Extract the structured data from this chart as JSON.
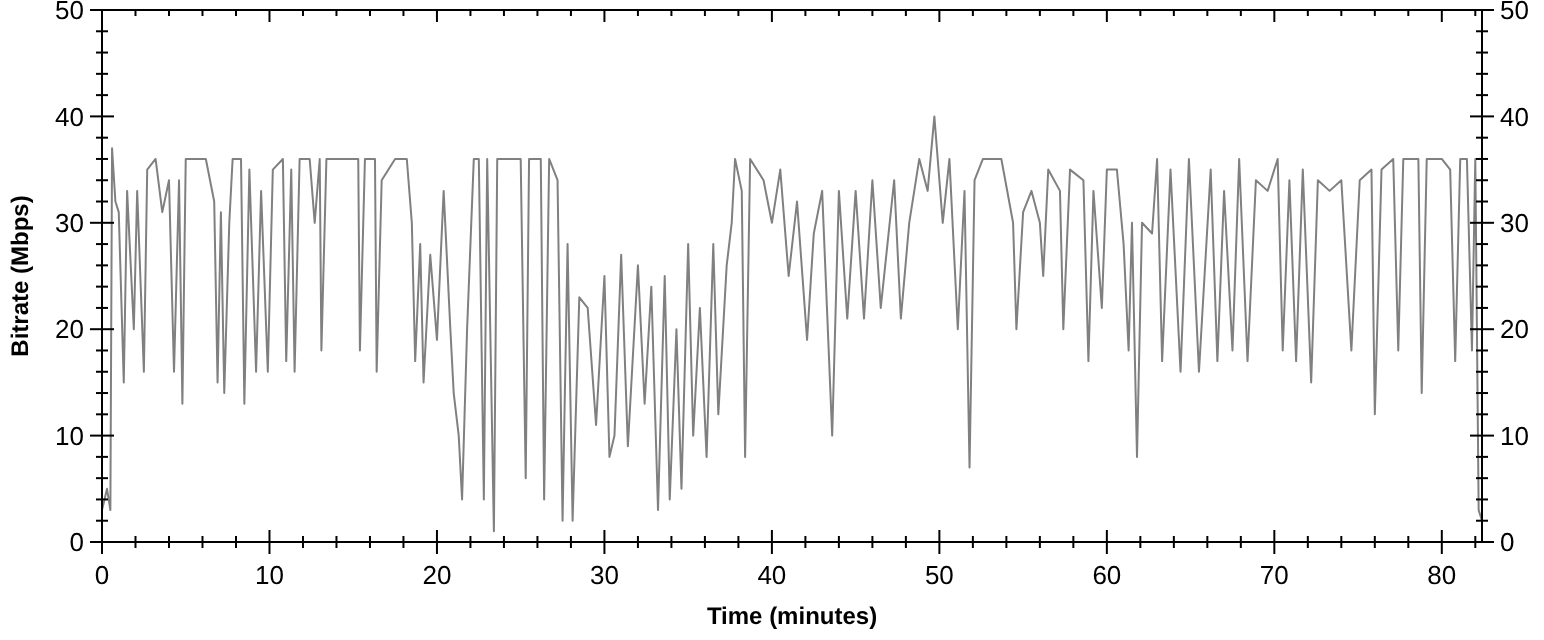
{
  "chart_data": {
    "type": "line",
    "xlabel": "Time (minutes)",
    "ylabel": "Bitrate (Mbps)",
    "xlim": [
      0,
      82.4
    ],
    "xticks": [
      0,
      {
        "value": 2,
        "label": null
      },
      {
        "value": 4,
        "label": null
      },
      {
        "value": 6,
        "label": null
      },
      {
        "value": 8,
        "label": null
      },
      10,
      {
        "value": 12,
        "label": null
      },
      {
        "value": 14,
        "label": null
      },
      {
        "value": 16,
        "label": null
      },
      {
        "value": 18,
        "label": null
      },
      20,
      {
        "value": 22,
        "label": null
      },
      {
        "value": 24,
        "label": null
      },
      {
        "value": 26,
        "label": null
      },
      {
        "value": 28,
        "label": null
      },
      30,
      {
        "value": 32,
        "label": null
      },
      {
        "value": 34,
        "label": null
      },
      {
        "value": 36,
        "label": null
      },
      {
        "value": 38,
        "label": null
      },
      40,
      {
        "value": 42,
        "label": null
      },
      {
        "value": 44,
        "label": null
      },
      {
        "value": 46,
        "label": null
      },
      {
        "value": 48,
        "label": null
      },
      50,
      {
        "value": 52,
        "label": null
      },
      {
        "value": 54,
        "label": null
      },
      {
        "value": 56,
        "label": null
      },
      {
        "value": 58,
        "label": null
      },
      60,
      {
        "value": 62,
        "label": null
      },
      {
        "value": 64,
        "label": null
      },
      {
        "value": 66,
        "label": null
      },
      {
        "value": 68,
        "label": null
      },
      70,
      {
        "value": 72,
        "label": null
      },
      {
        "value": 74,
        "label": null
      },
      {
        "value": 76,
        "label": null
      },
      {
        "value": 78,
        "label": null
      },
      80,
      {
        "value": 82,
        "label": null
      }
    ],
    "ylim": [
      0,
      50
    ],
    "yticks": [
      0,
      {
        "value": 2,
        "label": null
      },
      {
        "value": 4,
        "label": null
      },
      {
        "value": 6,
        "label": null
      },
      {
        "value": 8,
        "label": null
      },
      10,
      {
        "value": 12,
        "label": null
      },
      {
        "value": 14,
        "label": null
      },
      {
        "value": 16,
        "label": null
      },
      {
        "value": 18,
        "label": null
      },
      20,
      {
        "value": 22,
        "label": null
      },
      {
        "value": 24,
        "label": null
      },
      {
        "value": 26,
        "label": null
      },
      {
        "value": 28,
        "label": null
      },
      30,
      {
        "value": 32,
        "label": null
      },
      {
        "value": 34,
        "label": null
      },
      {
        "value": 36,
        "label": null
      },
      {
        "value": 38,
        "label": null
      },
      40,
      {
        "value": 42,
        "label": null
      },
      {
        "value": 44,
        "label": null
      },
      {
        "value": 46,
        "label": null
      },
      {
        "value": 48,
        "label": null
      },
      50
    ],
    "y2lim": [
      0,
      50
    ],
    "y2ticks": [
      0,
      {
        "value": 2,
        "label": null
      },
      {
        "value": 4,
        "label": null
      },
      {
        "value": 6,
        "label": null
      },
      {
        "value": 8,
        "label": null
      },
      10,
      {
        "value": 12,
        "label": null
      },
      {
        "value": 14,
        "label": null
      },
      {
        "value": 16,
        "label": null
      },
      {
        "value": 18,
        "label": null
      },
      20,
      {
        "value": 22,
        "label": null
      },
      {
        "value": 24,
        "label": null
      },
      {
        "value": 26,
        "label": null
      },
      {
        "value": 28,
        "label": null
      },
      30,
      {
        "value": 32,
        "label": null
      },
      {
        "value": 34,
        "label": null
      },
      {
        "value": 36,
        "label": null
      },
      {
        "value": 38,
        "label": null
      },
      40,
      {
        "value": 42,
        "label": null
      },
      {
        "value": 44,
        "label": null
      },
      {
        "value": 46,
        "label": null
      },
      {
        "value": 48,
        "label": null
      },
      50
    ],
    "grid": false,
    "series": [
      {
        "color": "#808080",
        "x": [
          0,
          0.3,
          0.5,
          0.6,
          0.8,
          1.0,
          1.3,
          1.5,
          1.9,
          2.1,
          2.5,
          2.7,
          3.2,
          3.6,
          4.0,
          4.3,
          4.6,
          4.8,
          5.0,
          6.2,
          6.7,
          6.9,
          7.1,
          7.3,
          7.6,
          7.8,
          8.3,
          8.5,
          8.8,
          9.2,
          9.5,
          9.9,
          10.2,
          10.8,
          11.0,
          11.3,
          11.5,
          11.8,
          12.4,
          12.7,
          13.0,
          13.1,
          13.4,
          14.0,
          15.3,
          15.4,
          15.7,
          16.3,
          16.4,
          16.7,
          17.5,
          18.2,
          18.5,
          18.7,
          19.0,
          19.2,
          19.6,
          20.0,
          20.4,
          20.8,
          21.0,
          21.3,
          21.5,
          21.8,
          22.2,
          22.5,
          22.8,
          23.0,
          23.4,
          23.6,
          25.0,
          25.3,
          25.5,
          26.2,
          26.4,
          26.7,
          27.2,
          27.5,
          27.8,
          28.1,
          28.5,
          29.0,
          29.5,
          30.0,
          30.3,
          30.6,
          31.0,
          31.4,
          32.0,
          32.4,
          32.8,
          33.2,
          33.6,
          33.9,
          34.3,
          34.6,
          35.0,
          35.3,
          35.7,
          36.1,
          36.5,
          36.8,
          37.3,
          37.6,
          37.8,
          38.2,
          38.4,
          38.7,
          39.5,
          40.0,
          40.5,
          41.0,
          41.5,
          42.1,
          42.5,
          43.0,
          43.6,
          44.0,
          44.5,
          45.0,
          45.5,
          46.0,
          46.5,
          47.3,
          47.7,
          48.2,
          48.8,
          49.3,
          49.7,
          50.2,
          50.6,
          51.1,
          51.5,
          51.8,
          52.1,
          52.6,
          53.7,
          54.4,
          54.6,
          55.0,
          55.5,
          56.0,
          56.2,
          56.5,
          57.2,
          57.4,
          57.8,
          58.6,
          58.9,
          59.2,
          59.7,
          60.0,
          60.6,
          61.0,
          61.3,
          61.5,
          61.8,
          62.1,
          62.7,
          63.0,
          63.3,
          63.8,
          64.4,
          64.9,
          65.5,
          66.2,
          66.6,
          67.0,
          67.5,
          67.9,
          68.4,
          68.9,
          69.6,
          70.2,
          70.5,
          70.9,
          71.3,
          71.7,
          72.2,
          72.6,
          73.3,
          74.0,
          74.6,
          75.1,
          75.8,
          76.0,
          76.4,
          77.1,
          77.4,
          77.7,
          78.6,
          78.8,
          79.1,
          80.0,
          80.5,
          80.8,
          81.1,
          81.5,
          81.8,
          82.0,
          82.2,
          82.4
        ],
        "values": [
          3,
          5,
          3,
          37,
          32,
          31,
          15,
          33,
          20,
          33,
          16,
          35,
          36,
          31,
          34,
          16,
          34,
          13,
          36,
          36,
          32,
          15,
          31,
          14,
          30,
          36,
          36,
          13,
          35,
          16,
          33,
          16,
          35,
          36,
          17,
          35,
          16,
          36,
          36,
          30,
          36,
          18,
          36,
          36,
          36,
          18,
          36,
          36,
          16,
          34,
          36,
          36,
          30,
          17,
          28,
          15,
          27,
          19,
          33,
          20,
          14,
          10,
          4,
          20,
          36,
          36,
          4,
          36,
          1,
          36,
          36,
          6,
          36,
          36,
          4,
          36,
          34,
          2,
          28,
          2,
          23,
          22,
          11,
          25,
          8,
          10,
          27,
          9,
          26,
          13,
          24,
          3,
          25,
          4,
          20,
          5,
          28,
          10,
          22,
          8,
          28,
          12,
          26,
          30,
          36,
          33,
          8,
          36,
          34,
          30,
          35,
          25,
          32,
          19,
          29,
          33,
          10,
          33,
          21,
          33,
          21,
          34,
          22,
          34,
          21,
          30,
          36,
          33,
          40,
          30,
          36,
          20,
          33,
          7,
          34,
          36,
          36,
          30,
          20,
          31,
          33,
          30,
          25,
          35,
          33,
          20,
          35,
          34,
          17,
          33,
          22,
          35,
          35,
          28,
          18,
          30,
          8,
          30,
          29,
          36,
          17,
          35,
          16,
          36,
          16,
          35,
          17,
          33,
          18,
          36,
          17,
          34,
          33,
          36,
          18,
          34,
          17,
          35,
          15,
          34,
          33,
          34,
          18,
          34,
          35,
          12,
          35,
          36,
          18,
          36,
          36,
          14,
          36,
          36,
          35,
          17,
          36,
          36,
          18,
          36,
          3,
          2
        ]
      }
    ]
  }
}
